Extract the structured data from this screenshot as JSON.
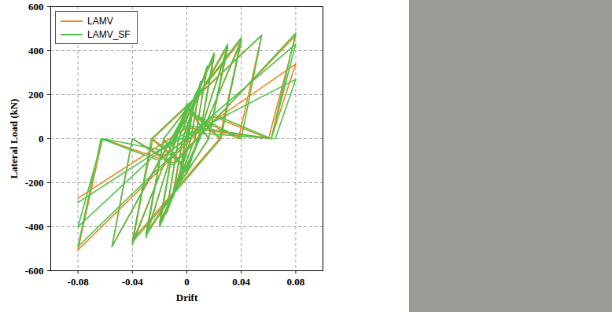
{
  "chart_data": {
    "type": "line",
    "xlabel": "Drift",
    "ylabel": "Lateral Load (kN)",
    "xlim": [
      -0.1,
      0.1
    ],
    "xticks": [
      -0.08,
      -0.04,
      0,
      0.04,
      0.08
    ],
    "ylim": [
      -600,
      600
    ],
    "yticks": [
      -600,
      -400,
      -200,
      0,
      200,
      400,
      600
    ],
    "grid": true,
    "legend": "top-left",
    "series": [
      {
        "name": "LAMV",
        "color": "#f5821f",
        "x": [
          0,
          0.005,
          0.001,
          -0.005,
          -0.001,
          0.01,
          0.003,
          -0.01,
          -0.003,
          0.01,
          0.003,
          -0.01,
          -0.003,
          0.015,
          0.006,
          -0.015,
          -0.006,
          0.02,
          0.009,
          -0.02,
          -0.009,
          0.02,
          0.009,
          -0.02,
          -0.009,
          0.03,
          0.016,
          0.0,
          -0.03,
          -0.017,
          0.0,
          0.03,
          0.016,
          -0.03,
          -0.017,
          0.04,
          0.024,
          0.0,
          -0.04,
          -0.025,
          0.0,
          0.04,
          0.024,
          -0.04,
          -0.025,
          0.055,
          0.038,
          0.0,
          -0.055,
          -0.04,
          -0.01,
          0.08,
          0.06,
          0.02,
          -0.08,
          -0.062,
          -0.02,
          0.08,
          0.062,
          0.0,
          -0.08
        ],
        "values": [
          0,
          150,
          0,
          -150,
          0,
          250,
          0,
          -250,
          0,
          240,
          0,
          -240,
          0,
          320,
          0,
          -330,
          0,
          380,
          0,
          -390,
          0,
          370,
          0,
          -380,
          0,
          420,
          0,
          150,
          -440,
          0,
          -150,
          410,
          0,
          -430,
          0,
          450,
          0,
          140,
          -470,
          0,
          -130,
          440,
          0,
          -460,
          0,
          470,
          0,
          120,
          -490,
          0,
          -110,
          470,
          0,
          100,
          -505,
          0,
          -90,
          340,
          0,
          50,
          -270
        ]
      },
      {
        "name": "LAMV_SF",
        "color": "#4dc34a",
        "x": [
          0,
          0.005,
          0.001,
          -0.005,
          -0.001,
          0.01,
          0.003,
          -0.01,
          -0.003,
          0.015,
          0.006,
          -0.015,
          -0.006,
          0.02,
          0.009,
          -0.02,
          -0.009,
          0.02,
          0.009,
          -0.02,
          -0.009,
          0.03,
          0.016,
          0.0,
          -0.03,
          -0.017,
          0.0,
          0.03,
          0.016,
          -0.03,
          -0.017,
          0.04,
          0.025,
          0.0,
          -0.04,
          -0.026,
          0.0,
          0.04,
          0.025,
          -0.04,
          -0.026,
          0.055,
          0.04,
          0.0,
          -0.055,
          -0.04,
          -0.01,
          0.08,
          0.062,
          0.02,
          -0.08,
          -0.063,
          -0.02,
          0.08,
          0.062,
          0.0,
          -0.08,
          -0.062,
          -0.02,
          0.08,
          0.065,
          0.0,
          -0.08
        ],
        "values": [
          0,
          160,
          0,
          -160,
          0,
          260,
          0,
          -260,
          0,
          330,
          0,
          -340,
          0,
          390,
          0,
          -400,
          0,
          380,
          0,
          -390,
          0,
          430,
          0,
          160,
          -450,
          0,
          -160,
          420,
          0,
          -440,
          0,
          460,
          0,
          150,
          -480,
          0,
          -140,
          450,
          0,
          -470,
          0,
          470,
          0,
          130,
          -490,
          0,
          -120,
          480,
          0,
          110,
          -490,
          0,
          -100,
          430,
          0,
          60,
          -400,
          0,
          -50,
          270,
          0,
          30,
          -290
        ]
      }
    ]
  }
}
